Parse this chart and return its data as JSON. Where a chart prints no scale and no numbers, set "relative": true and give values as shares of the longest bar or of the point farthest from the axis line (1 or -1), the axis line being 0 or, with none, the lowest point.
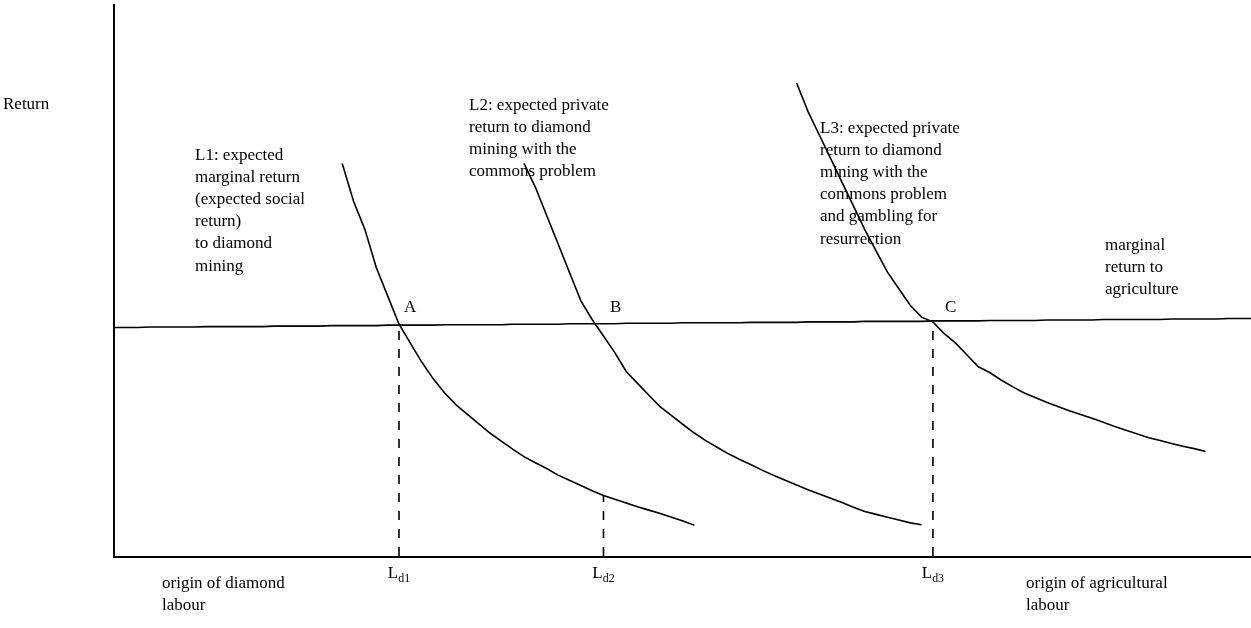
{
  "chart_data": {
    "type": "line",
    "relative": true,
    "ylabel": "Return",
    "categories": [
      null,
      null,
      null,
      null,
      null,
      null,
      null,
      null,
      null,
      null,
      null,
      null,
      null,
      null,
      null,
      null,
      null,
      null,
      null,
      null,
      null,
      null,
      null,
      null,
      null,
      "L$_{d1}$",
      null,
      null,
      null,
      null,
      null,
      null,
      null,
      null,
      null,
      null,
      null,
      null,
      null,
      null,
      null,
      null,
      null,
      "L$_{d2}$",
      null,
      null,
      null,
      null,
      null,
      null,
      null,
      null,
      null,
      null,
      null,
      null,
      null,
      null,
      null,
      null,
      null,
      null,
      null,
      null,
      null,
      null,
      null,
      null,
      null,
      null,
      null,
      null,
      "L$_{d3}$",
      null,
      null,
      null,
      null,
      null,
      null,
      null,
      null,
      null,
      null,
      null,
      null,
      null,
      null,
      null,
      null,
      null,
      null,
      null,
      null,
      null,
      null,
      null,
      null,
      null,
      null,
      null,
      null
    ],
    "series": [
      {
        "color": "#000000",
        "values": [
          null,
          null,
          null,
          null,
          null,
          null,
          null,
          null,
          null,
          null,
          null,
          null,
          null,
          null,
          null,
          null,
          null,
          null,
          null,
          null,
          0.83,
          0.75,
          0.69,
          0.61,
          0.55,
          0.49,
          0.45,
          0.41,
          0.375,
          0.345,
          0.32,
          0.3,
          0.28,
          0.26,
          0.243,
          0.226,
          0.21,
          0.197,
          0.185,
          0.171,
          0.16,
          0.149,
          0.138,
          0.128,
          0.12,
          0.112,
          0.104,
          0.097,
          0.09,
          0.082,
          0.074,
          0.065,
          null,
          null,
          null,
          null,
          null,
          null,
          null,
          null,
          null,
          null,
          null,
          null,
          null,
          null,
          null,
          null,
          null,
          null,
          null,
          null,
          null,
          null,
          null,
          null,
          null,
          null,
          null,
          null,
          null,
          null,
          null,
          null,
          null,
          null,
          null,
          null,
          null,
          null,
          null,
          null,
          null,
          null,
          null,
          null,
          null,
          null,
          null,
          null,
          null
        ]
      },
      {
        "color": "#000000",
        "values": [
          null,
          null,
          null,
          null,
          null,
          null,
          null,
          null,
          null,
          null,
          null,
          null,
          null,
          null,
          null,
          null,
          null,
          null,
          null,
          null,
          null,
          null,
          null,
          null,
          null,
          null,
          null,
          null,
          null,
          null,
          null,
          null,
          null,
          null,
          null,
          null,
          0.83,
          0.78,
          0.72,
          0.66,
          0.6,
          0.54,
          0.5,
          0.465,
          0.43,
          0.39,
          0.365,
          0.34,
          0.315,
          0.297,
          0.278,
          0.26,
          0.244,
          0.23,
          0.216,
          0.204,
          0.193,
          0.181,
          0.17,
          0.16,
          0.15,
          0.14,
          0.131,
          0.122,
          0.113,
          0.103,
          0.094,
          0.088,
          0.082,
          0.076,
          0.07,
          0.066,
          null,
          null,
          null,
          null,
          null,
          null,
          null,
          null,
          null,
          null,
          null,
          null,
          null,
          null,
          null,
          null,
          null,
          null,
          null,
          null,
          null,
          null,
          null,
          null,
          null,
          null,
          null,
          null,
          null
        ]
      },
      {
        "color": "#000000",
        "values": [
          null,
          null,
          null,
          null,
          null,
          null,
          null,
          null,
          null,
          null,
          null,
          null,
          null,
          null,
          null,
          null,
          null,
          null,
          null,
          null,
          null,
          null,
          null,
          null,
          null,
          null,
          null,
          null,
          null,
          null,
          null,
          null,
          null,
          null,
          null,
          null,
          null,
          null,
          null,
          null,
          null,
          null,
          null,
          null,
          null,
          null,
          null,
          null,
          null,
          null,
          null,
          null,
          null,
          null,
          null,
          null,
          null,
          null,
          null,
          null,
          1.0,
          0.94,
          0.89,
          0.84,
          0.79,
          0.74,
          0.69,
          0.645,
          0.6,
          0.565,
          0.53,
          0.505,
          0.495,
          0.47,
          0.45,
          0.425,
          0.4,
          0.388,
          0.372,
          0.358,
          0.345,
          0.335,
          0.325,
          0.316,
          0.307,
          0.299,
          0.291,
          0.283,
          0.274,
          0.266,
          0.258,
          0.25,
          0.244,
          0.238,
          0.232,
          0.227,
          0.221,
          null,
          null,
          null,
          null
        ]
      },
      {
        "color": "#000000",
        "values": [
          0.483,
          0.483,
          0.483,
          0.484,
          0.484,
          0.484,
          0.484,
          0.484,
          0.485,
          0.485,
          0.485,
          0.485,
          0.485,
          0.485,
          0.486,
          0.486,
          0.486,
          0.486,
          0.486,
          0.487,
          0.487,
          0.487,
          0.487,
          0.487,
          0.488,
          0.488,
          0.488,
          0.488,
          0.488,
          0.489,
          0.489,
          0.489,
          0.489,
          0.489,
          0.489,
          0.49,
          0.49,
          0.49,
          0.49,
          0.49,
          0.491,
          0.491,
          0.491,
          0.491,
          0.491,
          0.492,
          0.492,
          0.492,
          0.492,
          0.492,
          0.493,
          0.493,
          0.493,
          0.493,
          0.493,
          0.493,
          0.494,
          0.494,
          0.494,
          0.494,
          0.494,
          0.495,
          0.495,
          0.495,
          0.495,
          0.495,
          0.496,
          0.496,
          0.496,
          0.496,
          0.496,
          0.496,
          0.497,
          0.497,
          0.497,
          0.497,
          0.497,
          0.498,
          0.498,
          0.498,
          0.498,
          0.498,
          0.499,
          0.499,
          0.499,
          0.499,
          0.499,
          0.5,
          0.5,
          0.5,
          0.5,
          0.5,
          0.5,
          0.501,
          0.501,
          0.501,
          0.501,
          0.501,
          0.502,
          0.502,
          0.502
        ]
      }
    ],
    "ref_lines": [
      {
        "axis": "x",
        "value": "L$_{d1}$",
        "color": "#000000",
        "line_style": "dashed"
      },
      {
        "axis": "x",
        "value": "L$_{d2}$",
        "color": "#000000",
        "line_style": "dashed"
      },
      {
        "axis": "x",
        "value": "L$_{d3}$",
        "color": "#000000",
        "line_style": "dashed"
      }
    ],
    "annotations": [
      "L1: expected\nmarginal return\n(expected social\nreturn)\nto diamond\nmining",
      "L2: expected private\nreturn to diamond\nmining with the\ncommons problem",
      "L3: expected private\nreturn to diamond\nmining with the\ncommons problem\nand gambling for\nresurrection",
      "marginal\nreturn to\nagriculture",
      "A",
      "B",
      "C",
      "origin of diamond\nlabour",
      "origin of agricultural\nlabour"
    ]
  }
}
